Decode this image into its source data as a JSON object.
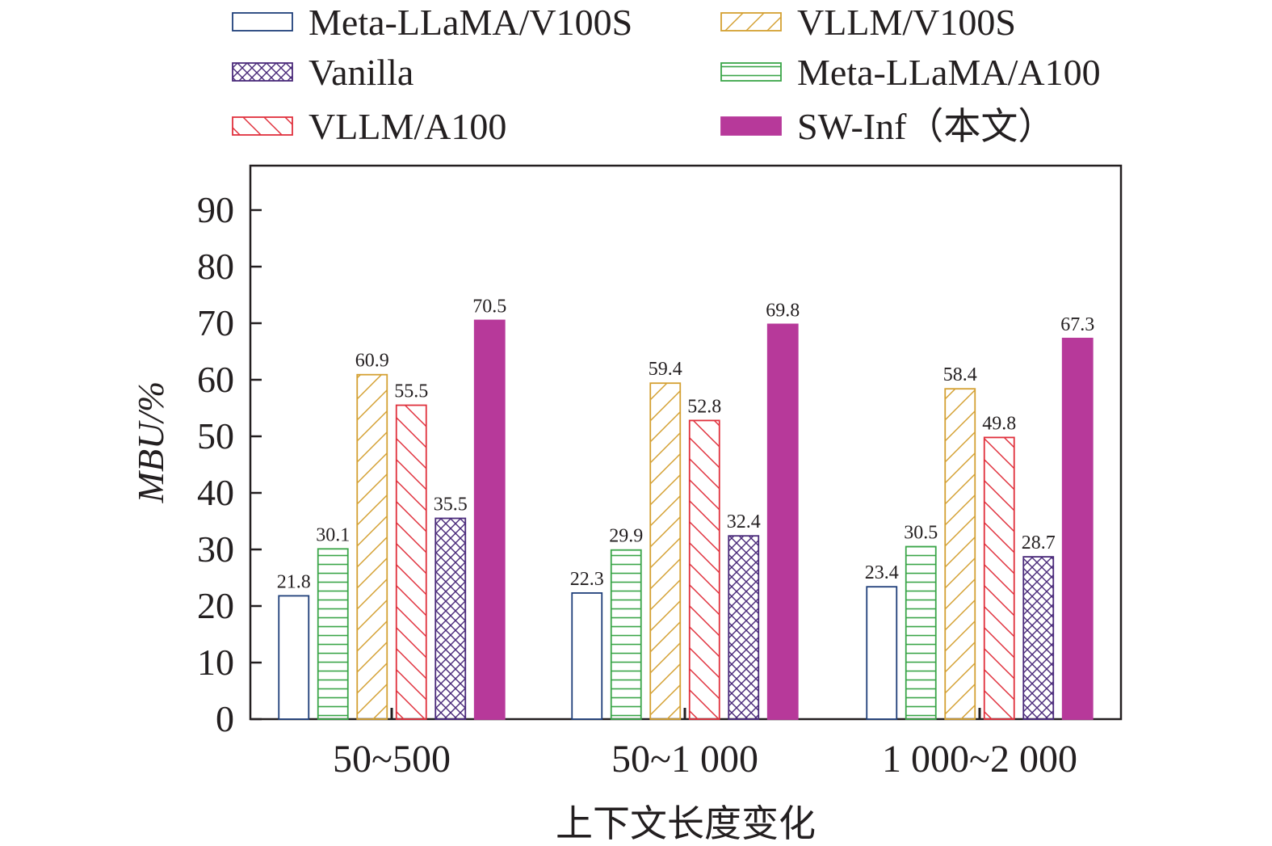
{
  "chart_data": {
    "type": "bar",
    "title": "",
    "xlabel": "上下文长度变化",
    "ylabel": "MBU/%",
    "ylim": [
      0,
      97
    ],
    "yticks": [
      0,
      10,
      20,
      30,
      40,
      50,
      60,
      70,
      80,
      90
    ],
    "categories": [
      "50~500",
      "50~1 000",
      "1 000~2 000"
    ],
    "series": [
      {
        "name": "Meta-LLaMA/V100S",
        "color": "#1f3f7a",
        "pattern": "outline",
        "values": [
          21.8,
          22.3,
          23.4
        ]
      },
      {
        "name": "Meta-LLaMA/A100",
        "color": "#3aa548",
        "pattern": "horizontal",
        "values": [
          30.1,
          29.9,
          30.5
        ]
      },
      {
        "name": "VLLM/V100S",
        "color": "#d4a032",
        "pattern": "forward-diagonal",
        "values": [
          60.9,
          59.4,
          58.4
        ]
      },
      {
        "name": "VLLM/A100",
        "color": "#e0303c",
        "pattern": "backward-diagonal",
        "values": [
          55.5,
          52.8,
          49.8
        ]
      },
      {
        "name": "Vanilla",
        "color": "#4a2a7a",
        "pattern": "crosshatch",
        "values": [
          35.5,
          32.4,
          28.7
        ]
      },
      {
        "name": "SW-Inf（本文）",
        "color": "#b7399a",
        "pattern": "solid",
        "values": [
          70.5,
          69.8,
          67.3
        ]
      }
    ],
    "legend": {
      "placement": "top",
      "order": [
        "Meta-LLaMA/V100S",
        "VLLM/V100S",
        "Vanilla",
        "Meta-LLaMA/A100",
        "VLLM/A100",
        "SW-Inf（本文）"
      ]
    },
    "value_labels": true,
    "grid": false
  }
}
